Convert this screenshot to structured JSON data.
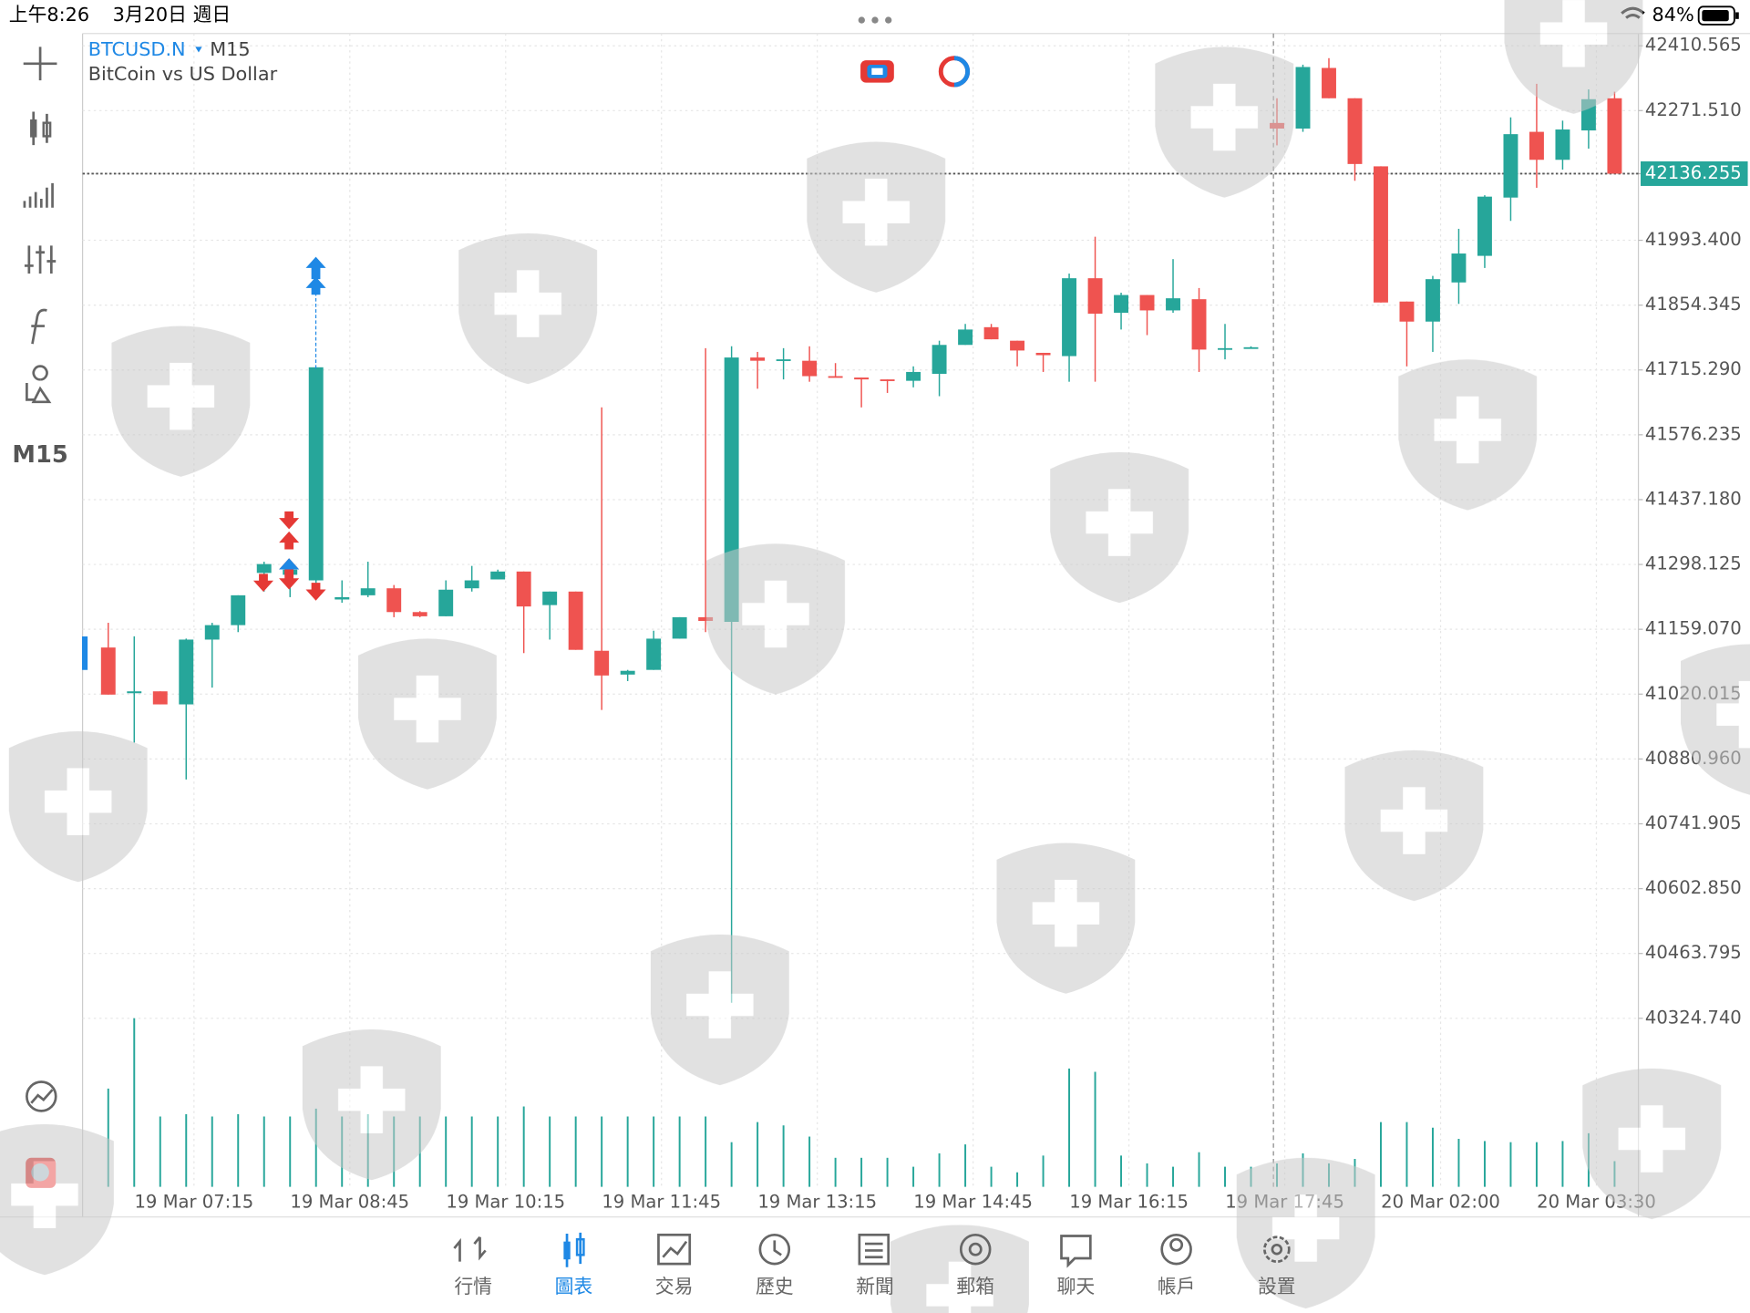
{
  "status_bar": {
    "time": "上午8:26",
    "date": "3月20日 週日",
    "battery": "84%"
  },
  "toolbar": {
    "timeframe": "M15"
  },
  "chart_data": {
    "type": "candlestick",
    "symbol": "BTCUSD.N",
    "timeframe": "M15",
    "description": "BitCoin vs US Dollar",
    "categories": [
      null,
      null,
      null,
      "19 Mar 07:15",
      null,
      null,
      null,
      null,
      null,
      "19 Mar 08:45",
      null,
      null,
      null,
      null,
      null,
      "19 Mar 10:15",
      null,
      null,
      null,
      null,
      null,
      "19 Mar 11:45",
      null,
      null,
      null,
      null,
      null,
      "19 Mar 13:15",
      null,
      null,
      null,
      null,
      null,
      "19 Mar 14:45",
      null,
      null,
      null,
      null,
      null,
      "19 Mar 16:15",
      null,
      null,
      null,
      null,
      null,
      "19 Mar 17:45",
      null,
      null,
      null,
      null,
      null,
      "20 Mar 02:00",
      null,
      null,
      null,
      null,
      null,
      "20 Mar 03:30",
      null
    ],
    "open": [
      41120,
      41022,
      41026,
      40998,
      41137,
      41168,
      41280,
      41276,
      41264,
      41223,
      41232,
      41247,
      41196,
      41187,
      41247,
      41266,
      41283,
      41211,
      41240,
      41113,
      41062,
      41072,
      41139,
      41185,
      41175,
      41742,
      41735,
      41735,
      41702,
      41699,
      41695,
      41692,
      41707,
      41769,
      41807,
      41778,
      41752,
      41745,
      41912,
      41838,
      41876,
      41843,
      41867,
      41759,
      41764,
      42245,
      42233,
      42363,
      42298,
      42152,
      41862,
      41819,
      41903,
      41960,
      42085,
      42226,
      42166,
      42229,
      42298
    ],
    "high": [
      41173,
      41144,
      41026,
      41139,
      41173,
      41232,
      41304,
      41299,
      41721,
      41264,
      41304,
      41254,
      41198,
      41264,
      41295,
      41287,
      41283,
      41240,
      41240,
      41635,
      41072,
      41156,
      41185,
      41762,
      41766,
      41754,
      41762,
      41766,
      41730,
      41699,
      41695,
      41723,
      41778,
      41814,
      41814,
      41778,
      41752,
      41922,
      42001,
      41881,
      41876,
      41953,
      41891,
      41814,
      41766,
      42298,
      42370,
      42384,
      42298,
      42152,
      41862,
      41917,
      42018,
      42090,
      42257,
      42329,
      42250,
      42317,
      42312
    ],
    "low": [
      41019,
      40916,
      40998,
      40837,
      41034,
      41153,
      41240,
      41228,
      41228,
      41216,
      41228,
      41185,
      41185,
      41187,
      41240,
      41266,
      41108,
      41137,
      41115,
      40986,
      41048,
      41072,
      41139,
      41153,
      40358,
      41675,
      41695,
      41690,
      41699,
      41635,
      41666,
      41678,
      41659,
      41769,
      41781,
      41723,
      41711,
      41690,
      41690,
      41802,
      41790,
      41838,
      41711,
      41738,
      41762,
      42197,
      42226,
      42298,
      42121,
      41860,
      41723,
      41754,
      41857,
      41934,
      42035,
      42106,
      42145,
      42190,
      42136.255
    ],
    "close": [
      41019,
      41026,
      40998,
      41137,
      41168,
      41232,
      41299,
      41287,
      41721,
      41228,
      41247,
      41196,
      41187,
      41244,
      41264,
      41283,
      41208,
      41240,
      41115,
      41060,
      41070,
      41139,
      41185,
      41177,
      41742,
      41735,
      41738,
      41702,
      41699,
      41695,
      41692,
      41711,
      41769,
      41802,
      41781,
      41757,
      41747,
      41912,
      41836,
      41876,
      41843,
      41869,
      41759,
      41762,
      41764,
      42233,
      42365,
      42298,
      42157,
      41860,
      41819,
      41910,
      41965,
      42087,
      42221,
      42166,
      42231,
      42296,
      42136.255
    ],
    "volume": [
      88,
      151,
      63,
      65,
      63,
      65,
      63,
      63,
      70,
      63,
      65,
      63,
      63,
      63,
      63,
      63,
      72,
      63,
      63,
      63,
      63,
      63,
      63,
      63,
      40,
      58,
      55,
      45,
      26,
      26,
      26,
      18,
      30,
      38,
      18,
      13,
      28,
      106,
      103,
      28,
      21,
      18,
      31,
      18,
      18,
      21,
      30,
      21,
      25,
      58,
      58,
      53,
      43,
      41,
      40,
      40,
      41,
      48,
      23
    ],
    "volume_ylim": [
      0,
      160
    ],
    "ylim": [
      39963.3,
      42436.9
    ],
    "yticks": [
      42410.565,
      {
        "value": 42271.51,
        "label": "42271.510"
      },
      42136.255,
      {
        "value": 41993.4,
        "label": "41993.400"
      },
      41854.345,
      {
        "value": 41715.29,
        "label": "41715.290"
      },
      41576.235,
      {
        "value": 41437.18,
        "label": "41437.180"
      },
      41298.125,
      {
        "value": 41159.07,
        "label": "41159.070"
      },
      41020.015,
      {
        "value": 40880.96,
        "label": "40880.960"
      },
      40741.905,
      {
        "value": 40602.85,
        "label": "40602.850"
      },
      40463.795,
      {
        "value": 40324.74,
        "label": "40324.740"
      }
    ],
    "current_price": 42136.255,
    "up_color": "#26a69a",
    "down_color": "#ef5350",
    "grid": true
  },
  "tab_bar": {
    "tabs": [
      "行情",
      "圖表",
      "交易",
      "歷史",
      "新聞",
      "郵箱",
      "聊天",
      "帳戶",
      "設置"
    ],
    "active": 1
  }
}
